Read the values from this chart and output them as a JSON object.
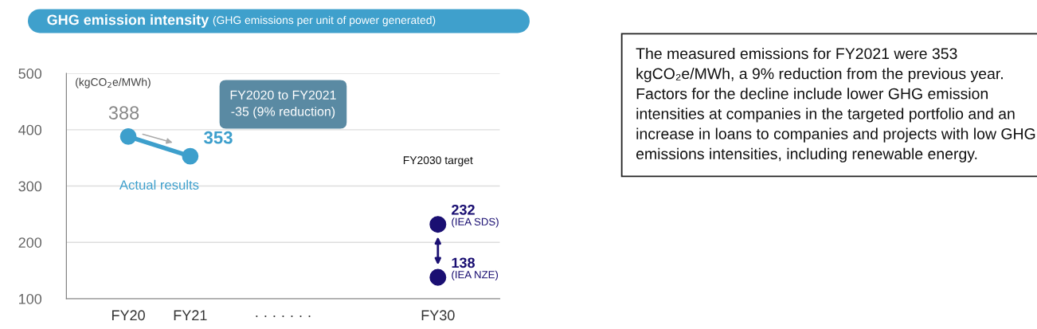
{
  "chart_data": {
    "type": "line",
    "title": "GHG emission intensity",
    "subtitle": "(GHG emissions per unit of power generated)",
    "ylabel": "(kgCO$_{2}$e/MWh)",
    "categories": [
      "FY20",
      "FY21",
      null,
      null,
      null,
      "FY30"
    ],
    "series": [
      {
        "name": "Actual results",
        "color": "#3d9fcc",
        "values": [
          388,
          353,
          null,
          null,
          null,
          null
        ],
        "value_labels": [
          "388",
          "353",
          null,
          null,
          null,
          null
        ]
      },
      {
        "name": "(IEA SDS)",
        "type": "scatter",
        "color": "#1a0f72",
        "values": [
          null,
          null,
          null,
          null,
          null,
          232
        ],
        "value_labels": [
          null,
          null,
          null,
          null,
          null,
          "232"
        ]
      },
      {
        "name": "(IEA NZE)",
        "type": "scatter",
        "color": "#1a0f72",
        "values": [
          null,
          null,
          null,
          null,
          null,
          138
        ],
        "value_labels": [
          null,
          null,
          null,
          null,
          null,
          "138"
        ]
      }
    ],
    "ylim": [
      100,
      500
    ],
    "yticks": [
      100,
      200,
      300,
      400,
      500
    ],
    "grid": "y",
    "marker": "circle",
    "annotations": [
      "FY2020 to FY2021\n-35 (9% reduction)",
      "FY2030 target",
      "· · · · · · ·",
      "The measured emissions for FY2021 were 353 kgCO₂e/MWh, a 9% reduction from the previous year. Factors for the decline include lower GHG emission intensities at companies in the targeted portfolio and an increase in loans to companies and projects with low GHG emissions intensities, including renewable energy."
    ]
  }
}
